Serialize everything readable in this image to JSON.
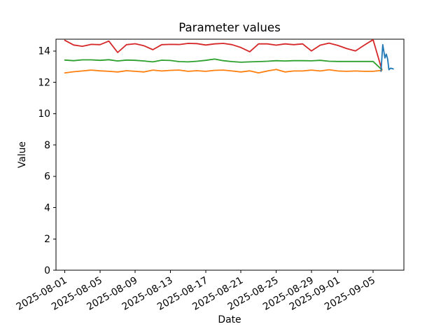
{
  "chart_data": {
    "type": "line",
    "title": "Parameter values",
    "xlabel": "Date",
    "ylabel": "Value",
    "grid": false,
    "legend": false,
    "background_color": "#ffffff",
    "spine_color": "#000000",
    "x_axis": {
      "start_date": "2025-08-01",
      "tick_labels": [
        "2025-08-01",
        "2025-08-05",
        "2025-08-09",
        "2025-08-13",
        "2025-08-17",
        "2025-08-21",
        "2025-08-25",
        "2025-08-29",
        "2025-09-01",
        "2025-09-05"
      ],
      "tick_day_offsets": [
        0,
        4,
        8,
        12,
        16,
        20,
        24,
        28,
        31,
        35
      ],
      "xlim_day_offsets": [
        -1.0,
        38.5
      ],
      "tick_label_rotation_deg": 30
    },
    "y_axis": {
      "ticks": [
        0,
        2,
        4,
        6,
        8,
        10,
        12,
        14
      ],
      "ylim": [
        0,
        14.75
      ]
    },
    "series": [
      {
        "name": "red-series",
        "color": "#d62728",
        "start_day_offset": 0,
        "interval_days": 1,
        "values": [
          14.68,
          14.38,
          14.3,
          14.42,
          14.4,
          14.63,
          13.9,
          14.4,
          14.46,
          14.33,
          14.08,
          14.4,
          14.42,
          14.41,
          14.48,
          14.47,
          14.38,
          14.45,
          14.48,
          14.4,
          14.22,
          13.95,
          14.45,
          14.45,
          14.37,
          14.45,
          14.4,
          14.45,
          14.0,
          14.37,
          14.5,
          14.35,
          14.15,
          14.0,
          14.37,
          14.72,
          12.8
        ]
      },
      {
        "name": "green-series",
        "color": "#2ca02c",
        "start_day_offset": 0,
        "interval_days": 1,
        "values": [
          13.42,
          13.38,
          13.43,
          13.43,
          13.4,
          13.44,
          13.36,
          13.42,
          13.4,
          13.36,
          13.3,
          13.41,
          13.39,
          13.32,
          13.3,
          13.34,
          13.4,
          13.48,
          13.38,
          13.32,
          13.28,
          13.3,
          13.32,
          13.34,
          13.38,
          13.36,
          13.38,
          13.38,
          13.37,
          13.4,
          13.34,
          13.33,
          13.33,
          13.33,
          13.33,
          13.33,
          12.8
        ]
      },
      {
        "name": "orange-series",
        "color": "#ff7f0e",
        "start_day_offset": 0,
        "interval_days": 1,
        "values": [
          12.6,
          12.67,
          12.72,
          12.78,
          12.73,
          12.7,
          12.66,
          12.74,
          12.7,
          12.66,
          12.78,
          12.72,
          12.76,
          12.78,
          12.7,
          12.74,
          12.7,
          12.76,
          12.78,
          12.72,
          12.66,
          12.73,
          12.6,
          12.72,
          12.82,
          12.66,
          12.72,
          12.72,
          12.78,
          12.72,
          12.8,
          12.72,
          12.7,
          12.72,
          12.7,
          12.7,
          12.76
        ]
      },
      {
        "name": "blue-series",
        "color": "#1f77b4",
        "points": [
          [
            35.9,
            12.7
          ],
          [
            36.1,
            14.4
          ],
          [
            36.35,
            13.55
          ],
          [
            36.5,
            13.8
          ],
          [
            36.65,
            13.5
          ],
          [
            36.8,
            12.8
          ],
          [
            37.0,
            12.9
          ],
          [
            37.3,
            12.85
          ]
        ]
      }
    ]
  }
}
